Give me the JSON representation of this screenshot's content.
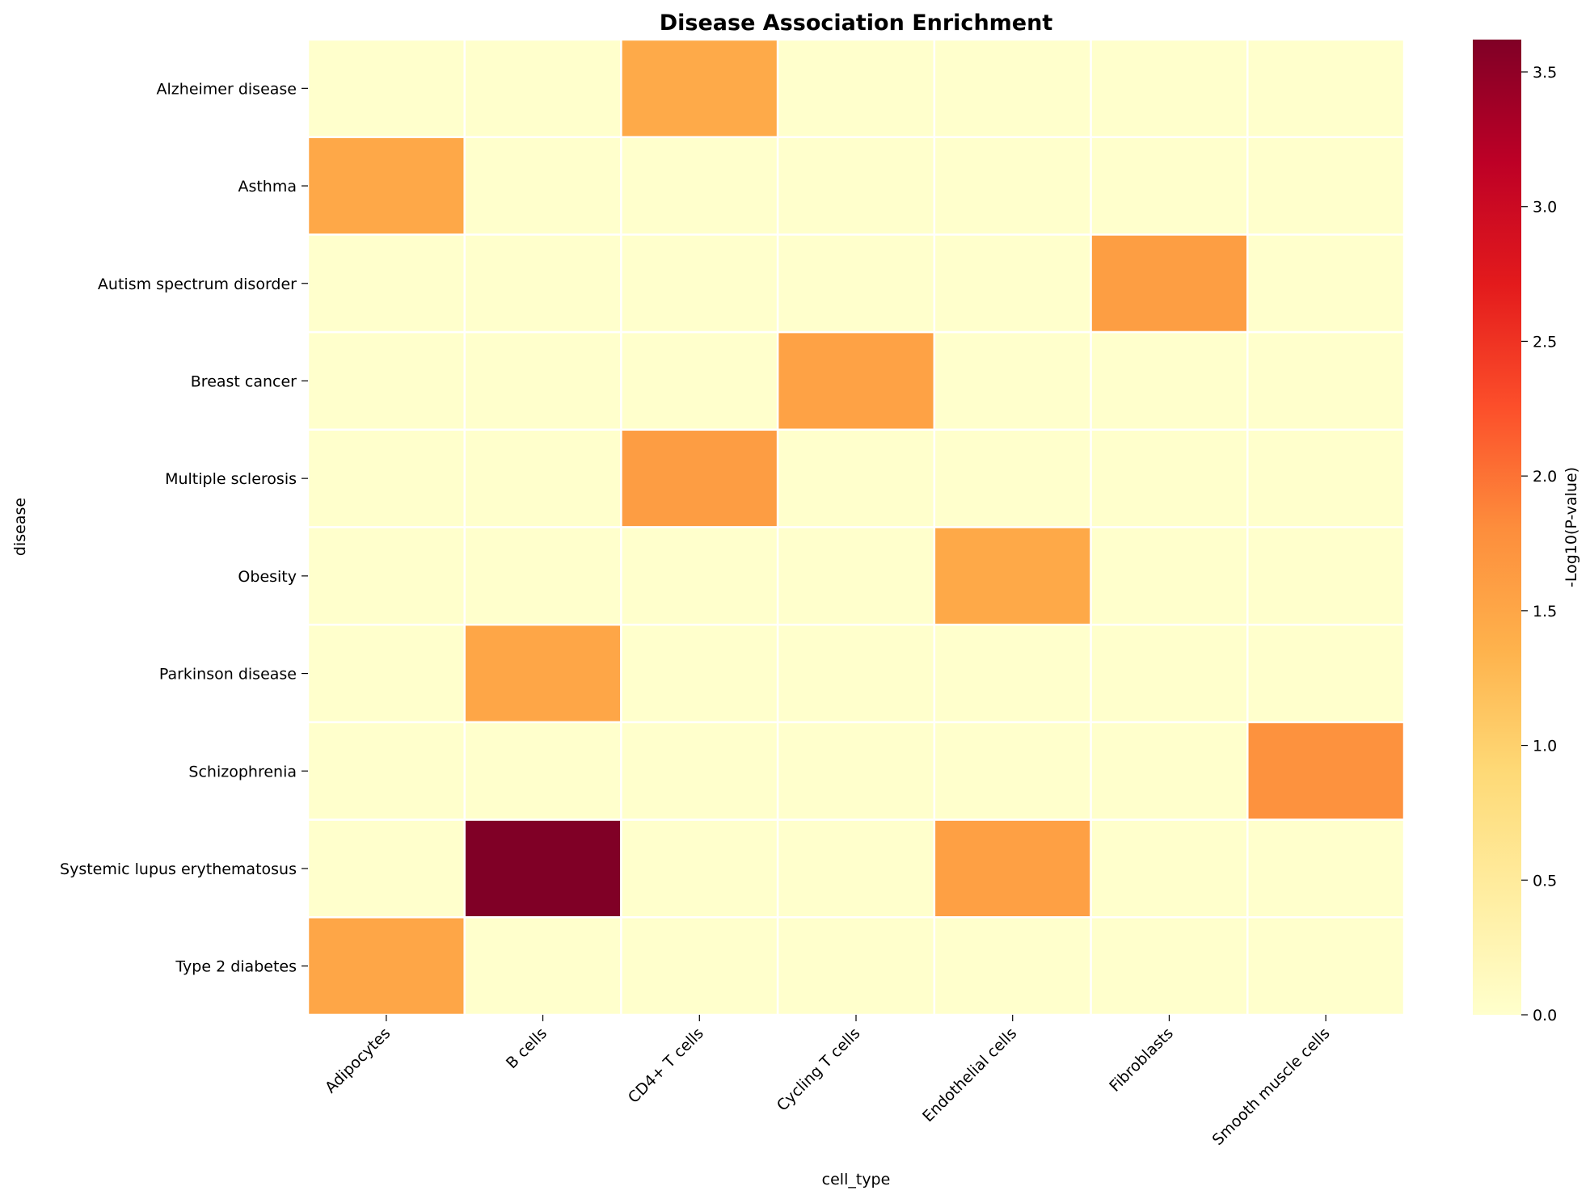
{
  "chart_data": {
    "type": "heatmap",
    "title": "Disease Association Enrichment",
    "xlabel": "cell_type",
    "ylabel": "disease",
    "x_categories": [
      "Adipocytes",
      "B cells",
      "CD4+ T cells",
      "Cycling T cells",
      "Endothelial cells",
      "Fibroblasts",
      "Smooth muscle cells"
    ],
    "y_categories": [
      "Alzheimer disease",
      "Asthma",
      "Autism spectrum disorder",
      "Breast cancer",
      "Multiple sclerosis",
      "Obesity",
      "Parkinson disease",
      "Schizophrenia",
      "Systemic lupus erythematosus",
      "Type 2 diabetes"
    ],
    "values": [
      [
        0,
        0,
        1.45,
        0,
        0,
        0,
        0
      ],
      [
        1.48,
        0,
        0,
        0,
        0,
        0,
        0
      ],
      [
        0,
        0,
        0,
        0,
        0,
        1.6,
        0
      ],
      [
        0,
        0,
        0,
        1.55,
        0,
        0,
        0
      ],
      [
        0,
        0,
        1.62,
        0,
        0,
        0,
        0
      ],
      [
        0,
        0,
        0,
        0,
        1.47,
        0,
        0
      ],
      [
        0,
        1.5,
        0,
        0,
        0,
        0,
        0
      ],
      [
        0,
        0,
        0,
        0,
        0,
        0,
        1.75
      ],
      [
        0,
        3.62,
        0,
        0,
        1.58,
        0,
        0
      ],
      [
        1.5,
        0,
        0,
        0,
        0,
        0,
        0
      ]
    ],
    "colorbar": {
      "label": "-Log10(P-value)",
      "range": [
        0,
        3.62
      ],
      "ticks": [
        0.0,
        0.5,
        1.0,
        1.5,
        2.0,
        2.5,
        3.0,
        3.5
      ],
      "tick_labels": [
        "0.0",
        "0.5",
        "1.0",
        "1.5",
        "2.0",
        "2.5",
        "3.0",
        "3.5"
      ],
      "colormap": "YlOrRd",
      "stops": [
        "#ffffcc",
        "#ffeda0",
        "#fed976",
        "#feb24c",
        "#fd8d3c",
        "#fc4e2a",
        "#e31a1c",
        "#bd0026",
        "#800026"
      ]
    },
    "grid_line_color": "#ffffff"
  }
}
